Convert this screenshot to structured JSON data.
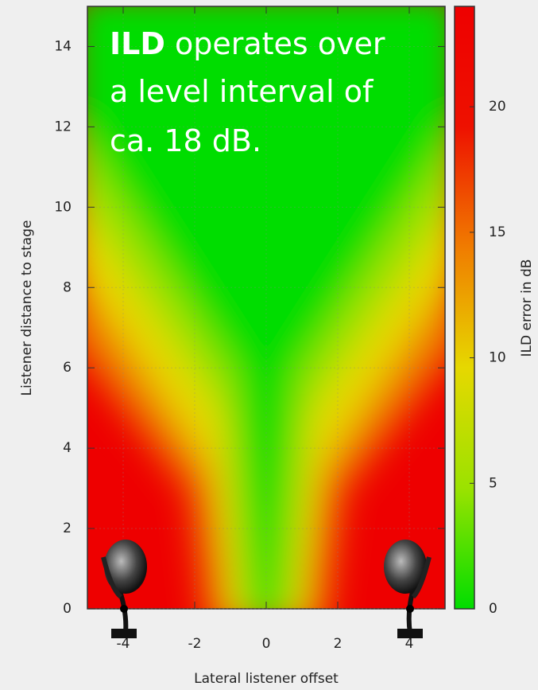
{
  "chart_data": {
    "type": "heatmap",
    "xlabel": "Lateral listener offset",
    "ylabel": "Listener distance to stage",
    "colorbar_label": "ILD error in dB",
    "xlim": [
      -5,
      5
    ],
    "xticks": [
      -4,
      -2,
      0,
      2,
      4
    ],
    "ylim": [
      0,
      15
    ],
    "yticks": [
      0,
      2,
      4,
      6,
      8,
      10,
      12,
      14
    ],
    "clim": [
      0,
      24
    ],
    "cticks": [
      0,
      5,
      10,
      15,
      20
    ],
    "colormap": [
      "#00dd00",
      "#9be200",
      "#e6d800",
      "#f07c00",
      "#ee1100",
      "#ee0000"
    ],
    "grid": true,
    "annotation": [
      "ILD",
      "operates over",
      "a level interval of",
      "ca. 18 dB."
    ]
  }
}
